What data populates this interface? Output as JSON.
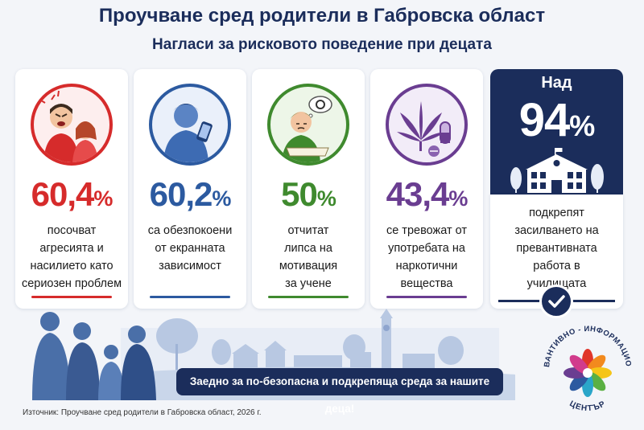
{
  "header": {
    "title": "Проучване сред родители в Габровска област",
    "subtitle": "Нагласи за рисковото поведение при децата"
  },
  "cards": [
    {
      "value": "60,4",
      "unit": "%",
      "color": "#d62b2b",
      "icon": "angry-parent-crying-child-icon",
      "lines": [
        "посочват",
        "агресията и",
        "насилието като",
        "сериозен проблем"
      ]
    },
    {
      "value": "60,2",
      "unit": "%",
      "color": "#2c5aa0",
      "icon": "child-with-smartphone-icon",
      "lines": [
        "са обезпокоени",
        "от екранната",
        "зависимост"
      ]
    },
    {
      "value": "50",
      "unit": "%",
      "color": "#3f8a2e",
      "icon": "bored-student-with-book-icon",
      "lines": [
        "отчитат",
        "липса на",
        "мотивация",
        "за учене"
      ]
    },
    {
      "value": "43,4",
      "unit": "%",
      "color": "#6a3d91",
      "icon": "cannabis-leaf-and-pills-icon",
      "lines": [
        "се тревожат от",
        "употребата на",
        "наркотични",
        "вещества"
      ]
    }
  ],
  "highlight": {
    "prefix": "Над",
    "value": "94",
    "unit": "%",
    "color": "#1b2d5b",
    "icon": "school-building-icon",
    "lines": [
      "подкрепят",
      "засилването на",
      "превантивната",
      "работа в",
      "училищата"
    ],
    "badge_icon": "checkmark-icon"
  },
  "footer": {
    "slogan": "Заедно за по-безопасна и подкрепяща среда за нашите деца!",
    "source": "Източник: Проучване сред родители в Габровска област, 2026 г."
  },
  "logo": {
    "top_text": "ПРЕВАНТИВНО - ИНФОРМАЦИОНЕН",
    "bottom_text": "ЦЕНТЪР"
  }
}
